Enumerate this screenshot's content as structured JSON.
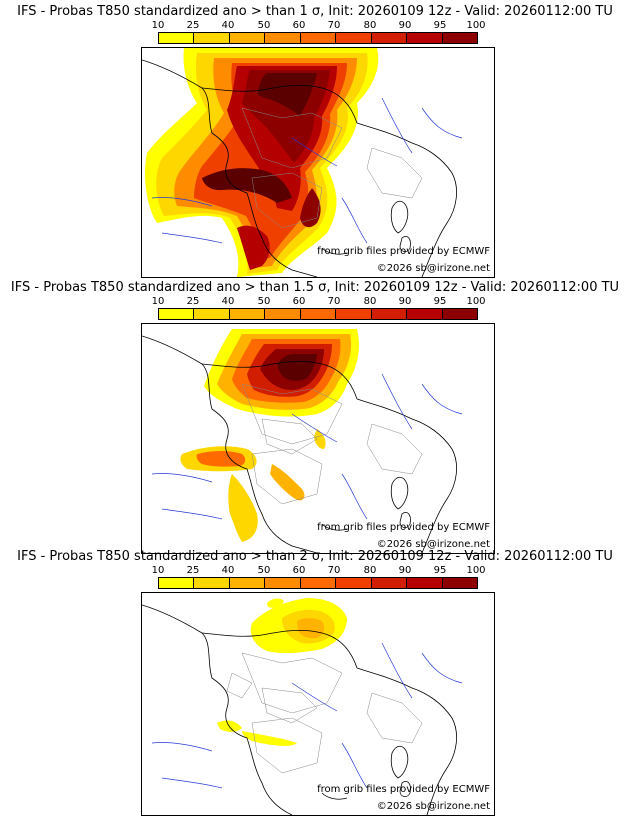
{
  "panels": [
    {
      "title": "IFS - Probas T850  standardized ano > than 1 σ, Init: 20260109 12z - Valid: 20260112:00 TU",
      "credit_source": "from grib files provided by ECMWF",
      "credit_copyright": "©2026 sb@irizone.net"
    },
    {
      "title": "IFS - Probas T850  standardized ano > than 1.5 σ, Init: 20260109 12z - Valid: 20260112:00 TU",
      "credit_source": "from grib files provided by ECMWF",
      "credit_copyright": "©2026 sb@irizone.net"
    },
    {
      "title": "IFS - Probas T850  standardized ano > than 2 σ, Init: 20260109 12z - Valid: 20260112:00 TU",
      "credit_source": "from grib files provided by ECMWF",
      "credit_copyright": "©2026 sb@irizone.net"
    }
  ],
  "legend": {
    "levels": [
      "10",
      "25",
      "40",
      "50",
      "60",
      "70",
      "80",
      "90",
      "95",
      "100"
    ],
    "colors": [
      "#ffff00",
      "#ffd700",
      "#ffb300",
      "#ff8c00",
      "#ff6a00",
      "#f04000",
      "#d21e00",
      "#b40000",
      "#8c0000",
      "#5a0000"
    ]
  }
}
